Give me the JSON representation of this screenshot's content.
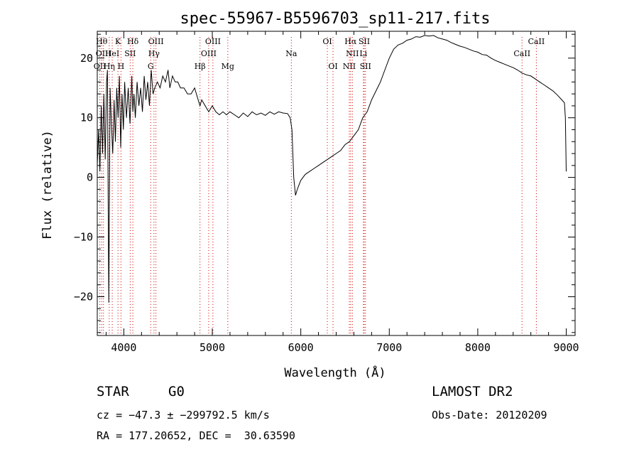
{
  "chart_data": {
    "type": "line",
    "title": "spec-55967-B5596703_sp11-217.fits",
    "xlabel": "Wavelength (Å)",
    "ylabel": "Flux (relative)",
    "xlim": [
      3700,
      9100
    ],
    "ylim": [
      -26.5,
      24.5
    ],
    "grid": false,
    "xticks": [
      4000,
      5000,
      6000,
      7000,
      8000,
      9000
    ],
    "xtick_labels": [
      "4000",
      "5000",
      "6000",
      "7000",
      "8000",
      "9000"
    ],
    "yticks": [
      -20,
      -10,
      0,
      10,
      20
    ],
    "ytick_labels": [
      "−20",
      "−10",
      "0",
      "10",
      "20"
    ],
    "series": [
      {
        "color": "#000000",
        "x": [
          3700,
          3715,
          3730,
          3745,
          3760,
          3775,
          3790,
          3805,
          3815,
          3830,
          3845,
          3860,
          3875,
          3890,
          3905,
          3920,
          3935,
          3950,
          3965,
          3980,
          3995,
          4010,
          4030,
          4050,
          4070,
          4090,
          4102,
          4115,
          4130,
          4150,
          4170,
          4190,
          4210,
          4230,
          4250,
          4270,
          4290,
          4310,
          4330,
          4350,
          4380,
          4410,
          4440,
          4470,
          4500,
          4520,
          4550,
          4580,
          4610,
          4640,
          4680,
          4720,
          4760,
          4800,
          4840,
          4861,
          4880,
          4920,
          4960,
          5000,
          5040,
          5080,
          5120,
          5160,
          5200,
          5250,
          5300,
          5350,
          5400,
          5450,
          5500,
          5550,
          5600,
          5650,
          5700,
          5750,
          5800,
          5850,
          5880,
          5900,
          5920,
          5940,
          5960,
          6000,
          6050,
          6100,
          6150,
          6200,
          6250,
          6300,
          6350,
          6400,
          6450,
          6500,
          6550,
          6600,
          6650,
          6700,
          6750,
          6800,
          6850,
          6900,
          6950,
          7000,
          7050,
          7100,
          7150,
          7200,
          7250,
          7300,
          7350,
          7400,
          7450,
          7500,
          7550,
          7600,
          7650,
          7700,
          7750,
          7800,
          7850,
          7900,
          7950,
          8000,
          8050,
          8100,
          8150,
          8200,
          8250,
          8300,
          8350,
          8400,
          8450,
          8500,
          8550,
          8600,
          8650,
          8700,
          8750,
          8800,
          8850,
          8900,
          8950,
          8980,
          8990,
          9000
        ],
        "y": [
          2,
          8,
          1,
          12,
          4,
          14,
          3,
          16,
          18,
          -21,
          15,
          9,
          4,
          13,
          6,
          15,
          10,
          17,
          5,
          14,
          8,
          16,
          10,
          15,
          9,
          17,
          11,
          14,
          10,
          16,
          12,
          15,
          11,
          17,
          13,
          16,
          12,
          18,
          14,
          15,
          16,
          15,
          17,
          16,
          18,
          15,
          17,
          16,
          16,
          15,
          15,
          14,
          14,
          15,
          13,
          12,
          13,
          12,
          11,
          12,
          11,
          10.5,
          11,
          10.5,
          11,
          10.5,
          10,
          10.8,
          10.2,
          11,
          10.5,
          10.8,
          10.4,
          11,
          10.6,
          11,
          10.8,
          10.7,
          10,
          8,
          0,
          -3,
          -2,
          -0.5,
          0.5,
          1,
          1.5,
          2,
          2.5,
          3,
          3.5,
          4,
          4.5,
          5.5,
          6,
          7,
          8,
          10,
          11,
          13,
          14.5,
          16,
          18,
          20,
          21.5,
          22.2,
          22.5,
          23,
          23.2,
          23.6,
          23.5,
          23.8,
          23.7,
          23.8,
          23.4,
          23.2,
          23.0,
          22.6,
          22.3,
          22.0,
          21.8,
          21.5,
          21.2,
          21.0,
          20.6,
          20.5,
          20.0,
          19.6,
          19.3,
          19.0,
          18.7,
          18.4,
          18.0,
          17.5,
          17.2,
          17.0,
          16.5,
          16.0,
          15.5,
          15.0,
          14.5,
          13.8,
          13.0,
          12.5,
          10,
          1
        ]
      }
    ],
    "line_markers": [
      {
        "x": 3729,
        "label": "OII",
        "row": 2
      },
      {
        "x": 3750,
        "label": "Hθ",
        "row": 0
      },
      {
        "x": 3770,
        "label": "OIII",
        "row": 1
      },
      {
        "x": 3835,
        "label": "Hη",
        "row": 2
      },
      {
        "x": 3869,
        "label": "HeI",
        "row": 1
      },
      {
        "x": 3934,
        "label": "K",
        "row": 0
      },
      {
        "x": 3968,
        "label": "H",
        "row": 2
      },
      {
        "x": 4072,
        "label": "SII",
        "row": 1
      },
      {
        "x": 4102,
        "label": "Hδ",
        "row": 0
      },
      {
        "x": 4304,
        "label": "G",
        "row": 2
      },
      {
        "x": 4341,
        "label": "Hγ",
        "row": 1
      },
      {
        "x": 4363,
        "label": "OIII",
        "row": 0
      },
      {
        "x": 4861,
        "label": "Hβ",
        "row": 2
      },
      {
        "x": 4959,
        "label": "OIII",
        "row": 1
      },
      {
        "x": 5007,
        "label": "OIII",
        "row": 0
      },
      {
        "x": 5175,
        "label": "Mg",
        "row": 2
      },
      {
        "x": 5893,
        "label": "Na",
        "row": 1
      },
      {
        "x": 6300,
        "label": "OI",
        "row": 0
      },
      {
        "x": 6364,
        "label": "OI",
        "row": 2
      },
      {
        "x": 6548,
        "label": "NII",
        "row": 2
      },
      {
        "x": 6563,
        "label": "Hα",
        "row": 0
      },
      {
        "x": 6583,
        "label": "NII",
        "row": 1
      },
      {
        "x": 6707,
        "label": "Li",
        "row": 1
      },
      {
        "x": 6717,
        "label": "SII",
        "row": 0
      },
      {
        "x": 6731,
        "label": "SII",
        "row": 2
      },
      {
        "x": 8500,
        "label": "CaII",
        "row": 1
      },
      {
        "x": 8662,
        "label": "CaII",
        "row": 0
      }
    ]
  },
  "info": {
    "class": "STAR",
    "subclass": "G0",
    "survey": "LAMOST DR2",
    "redshift": "cz = −47.3 ± −299792.5 km/s",
    "obs_date": "Obs-Date: 20120209",
    "coords": "RA = 177.20652, DEC =  30.63590"
  }
}
